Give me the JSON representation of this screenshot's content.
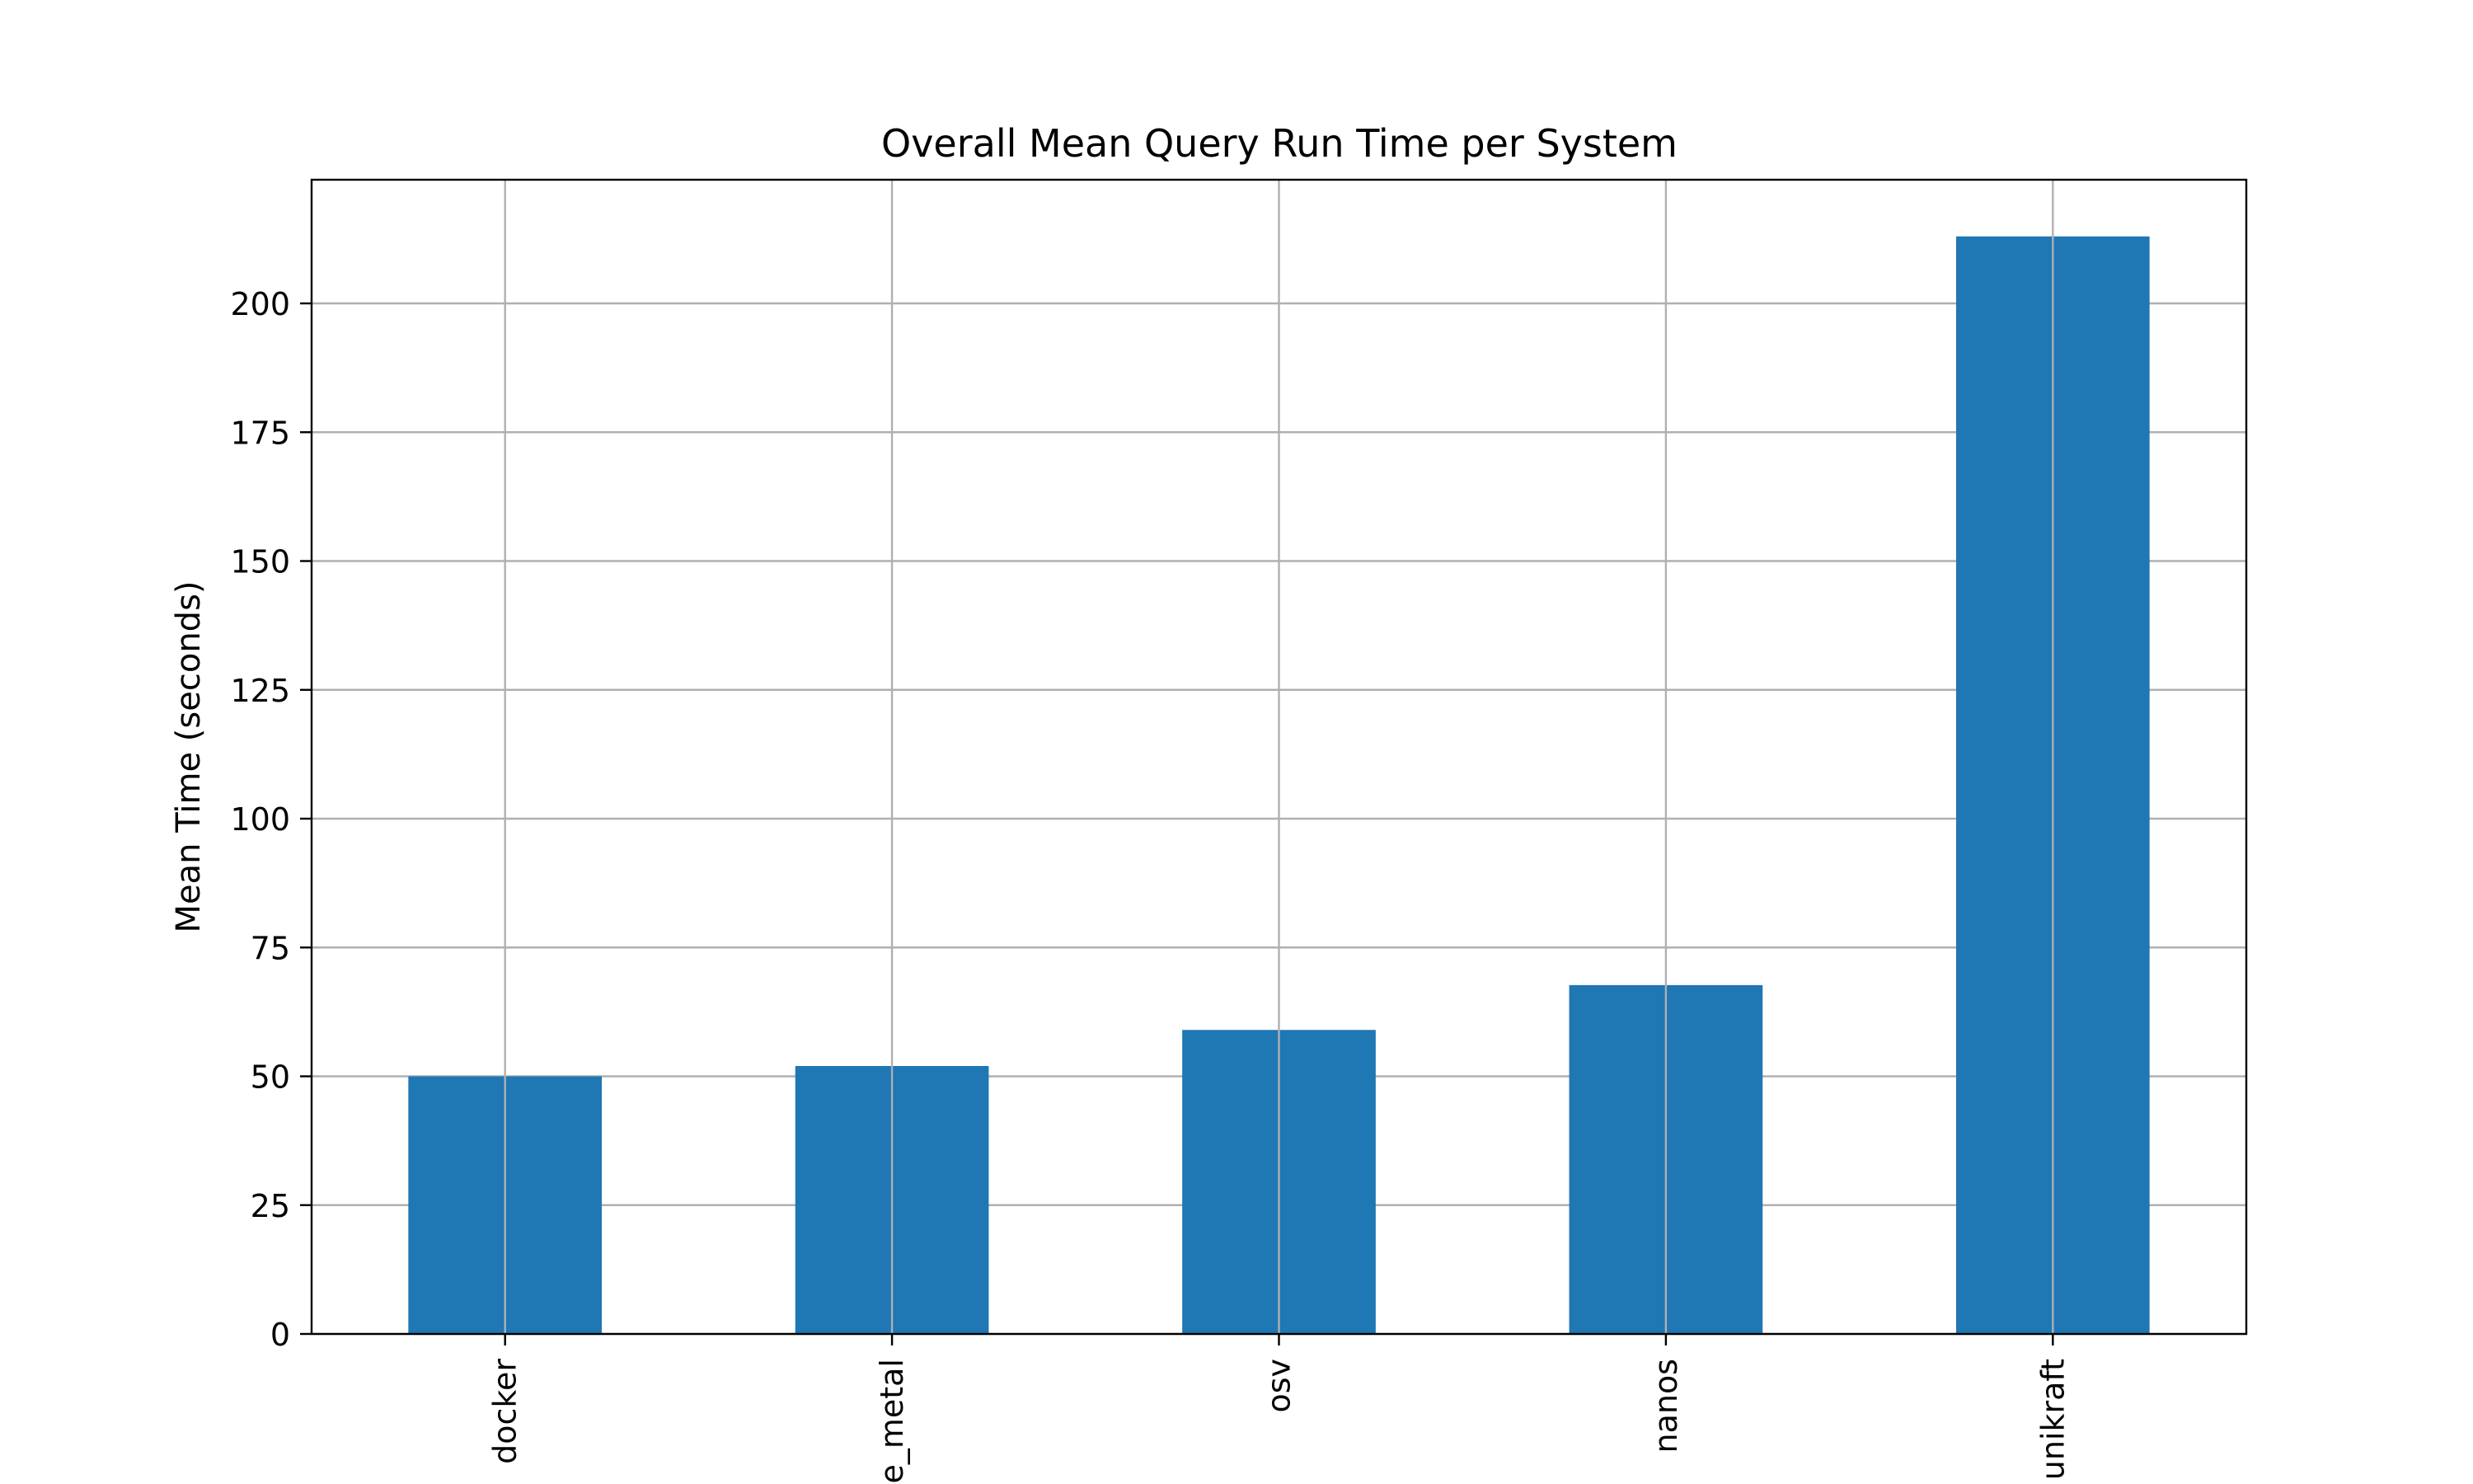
{
  "chart_data": {
    "type": "bar",
    "title": "Overall Mean Query Run Time per System",
    "xlabel": "",
    "ylabel": "Mean Time (seconds)",
    "categories": [
      "docker",
      "e_metal",
      "osv",
      "nanos",
      "unikraft"
    ],
    "values": [
      50.0,
      52.0,
      59.0,
      67.7,
      213.0
    ],
    "ylim": [
      0,
      224
    ],
    "yticks": [
      "0",
      "25",
      "50",
      "75",
      "100",
      "125",
      "150",
      "175",
      "200"
    ],
    "grid": true,
    "bar_color": "#1f77b4",
    "legend": "none"
  }
}
